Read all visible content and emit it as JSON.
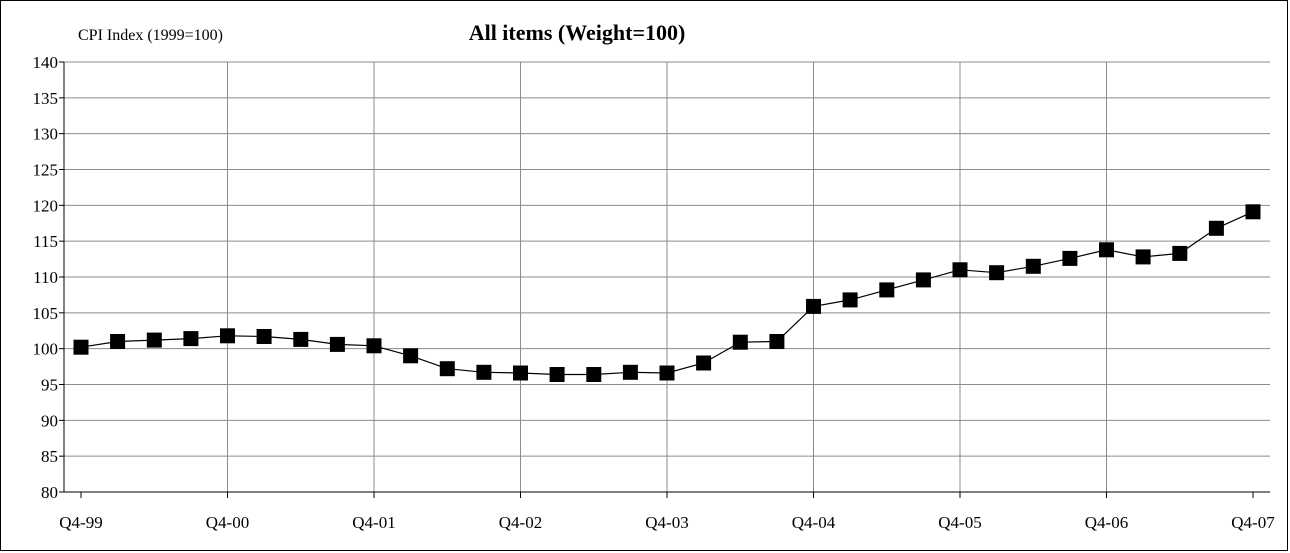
{
  "chart_data": {
    "type": "line",
    "title": "All items (Weight=100)",
    "ylabel": "CPI Index (1999=100)",
    "xlabel": "",
    "ylim": [
      80,
      140
    ],
    "ytick_step": 5,
    "grid": true,
    "legend": "none",
    "x_tick_labels": [
      "Q4-99",
      "Q4-00",
      "Q4-01",
      "Q4-02",
      "Q4-03",
      "Q4-04",
      "Q4-05",
      "Q4-06",
      "Q4-07"
    ],
    "series": [
      {
        "color": "#000000",
        "marker": "square",
        "values": [
          100.2,
          101.0,
          101.2,
          101.4,
          101.8,
          101.7,
          101.3,
          100.6,
          100.4,
          99.0,
          97.2,
          96.7,
          96.6,
          96.4,
          96.4,
          96.7,
          96.6,
          98.0,
          100.9,
          101.0,
          105.9,
          106.8,
          108.2,
          109.6,
          111.0,
          110.6,
          111.5,
          112.6,
          113.8,
          112.8,
          113.3,
          116.8,
          119.1
        ]
      }
    ]
  }
}
